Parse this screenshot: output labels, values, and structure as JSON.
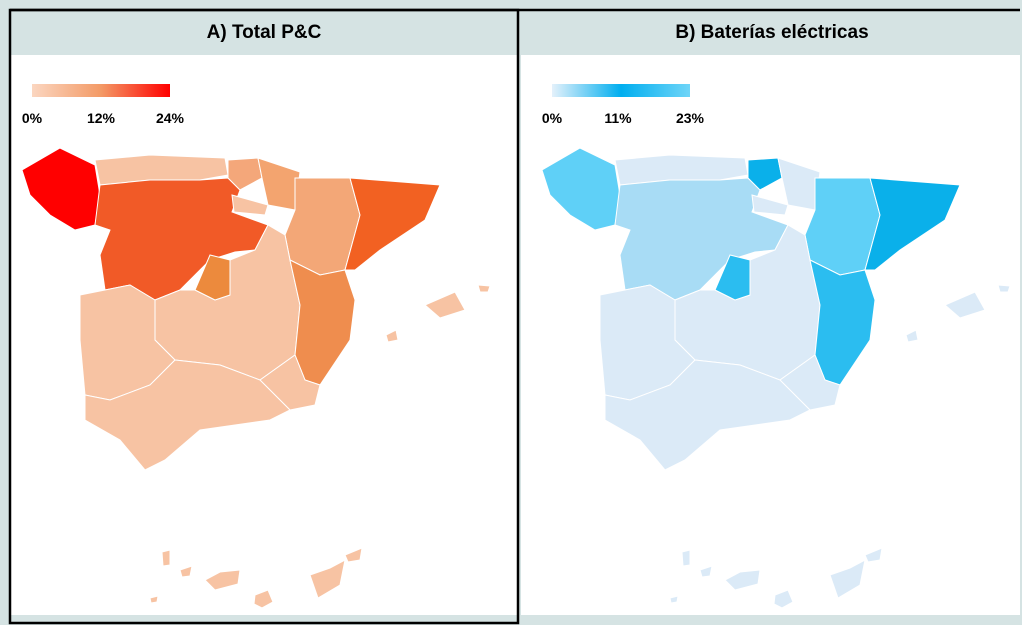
{
  "panels": [
    {
      "title": "A) Total P&C",
      "scale": {
        "range": [
          0,
          24
        ],
        "colors": [
          "#fbd6c0",
          "#f39a66",
          "#ff0000"
        ],
        "ticks": [
          {
            "value": 0,
            "label": "0%"
          },
          {
            "value": 12,
            "label": "12%"
          },
          {
            "value": 24,
            "label": "24%"
          }
        ]
      }
    },
    {
      "title": "B) Baterías eléctricas",
      "scale": {
        "range": [
          0,
          23
        ],
        "colors": [
          "#e4f1fb",
          "#00aeef",
          "#6fd5f8"
        ],
        "ticks": [
          {
            "value": 0,
            "label": "0%"
          },
          {
            "value": 11,
            "label": "11%"
          },
          {
            "value": 23,
            "label": "23%"
          }
        ]
      }
    }
  ]
}
